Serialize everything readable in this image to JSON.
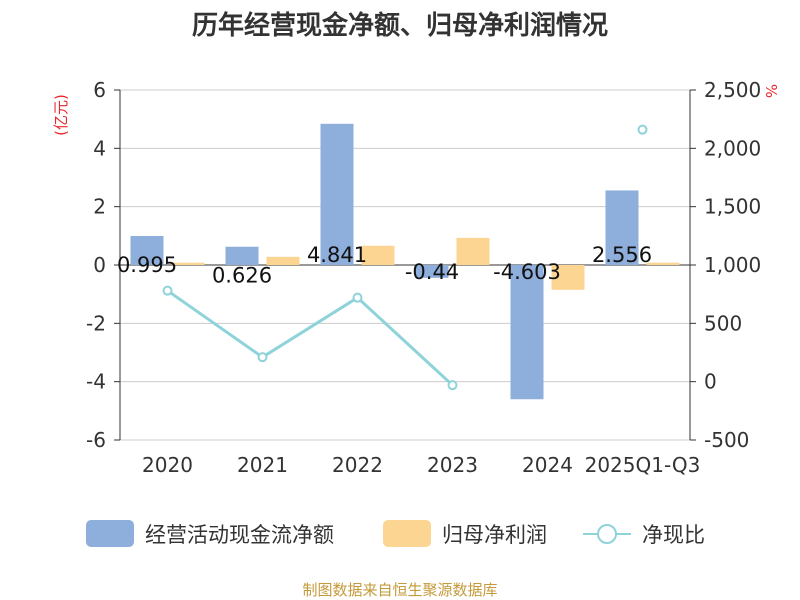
{
  "chart_data": {
    "type": "bar",
    "title": "历年经营现金净额、归母净利润情况",
    "categories": [
      "2020",
      "2021",
      "2022",
      "2023",
      "2024",
      "2025Q1-Q3"
    ],
    "series": [
      {
        "name": "经营活动现金流净额",
        "type": "bar",
        "axis": "left",
        "color": "#8eaedb",
        "values": [
          0.995,
          0.626,
          4.841,
          -0.44,
          -4.603,
          2.556
        ],
        "labels": [
          "0.995",
          "0.626",
          "4.841",
          "-0.44",
          "-4.603",
          "2.556"
        ]
      },
      {
        "name": "归母净利润",
        "type": "bar",
        "axis": "left",
        "color": "#fdd592",
        "values": [
          0.08,
          0.28,
          0.66,
          0.93,
          -0.85,
          0.08
        ]
      },
      {
        "name": "净现比",
        "type": "line",
        "axis": "right",
        "color": "#8fd3da",
        "values": [
          780,
          210,
          720,
          -30,
          null,
          2160
        ]
      }
    ],
    "y_left": {
      "unit": "(亿元)",
      "range": [
        -6,
        6
      ],
      "ticks": [
        "6",
        "4",
        "2",
        "0",
        "-2",
        "-4",
        "-6"
      ]
    },
    "y_right": {
      "unit": "%",
      "range": [
        -500,
        2500
      ],
      "ticks": [
        "2,500",
        "2,000",
        "1,500",
        "1,000",
        "500",
        "0",
        "-500"
      ]
    },
    "grid": true,
    "legend": "bottom"
  },
  "source": "制图数据来自恒生聚源数据库"
}
